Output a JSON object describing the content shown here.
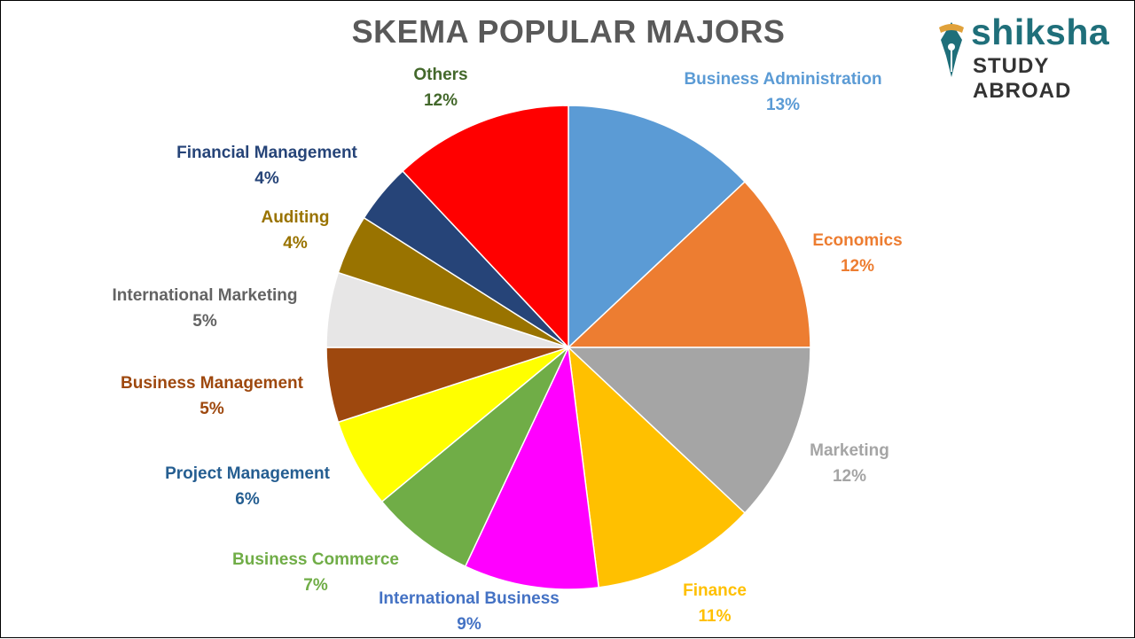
{
  "logo": {
    "word": "shiksha",
    "sub": "STUDY ABROAD",
    "color": "#1f6f7a"
  },
  "chart_data": {
    "type": "pie",
    "title": "SKEMA POPULAR MAJORS",
    "start_angle_deg": 0,
    "direction": "clockwise",
    "slices": [
      {
        "label": "Business Administration",
        "value_text": "13%",
        "value": 13,
        "color": "#5b9bd5",
        "label_color": "#5b9bd5"
      },
      {
        "label": "Economics",
        "value_text": "12%",
        "value": 12,
        "color": "#ed7d31",
        "label_color": "#ed7d31"
      },
      {
        "label": "Marketing",
        "value_text": "12%",
        "value": 12,
        "color": "#a5a5a5",
        "label_color": "#a5a5a5"
      },
      {
        "label": "Finance",
        "value_text": "11%",
        "value": 11,
        "color": "#ffc000",
        "label_color": "#ffc000"
      },
      {
        "label": "International Business",
        "value_text": "9%",
        "value": 9,
        "color": "#ff00ff",
        "label_color": "#4472c4"
      },
      {
        "label": "Business Commerce",
        "value_text": "7%",
        "value": 7,
        "color": "#70ad47",
        "label_color": "#70ad47"
      },
      {
        "label": "Project Management",
        "value_text": "6%",
        "value": 6,
        "color": "#ffff00",
        "label_color": "#255e91"
      },
      {
        "label": "Business Management",
        "value_text": "5%",
        "value": 5,
        "color": "#9e480e",
        "label_color": "#9e480e"
      },
      {
        "label": "International Marketing",
        "value_text": "5%",
        "value": 5,
        "color": "#e7e6e6",
        "label_color": "#636363"
      },
      {
        "label": "Auditing",
        "value_text": "4%",
        "value": 4,
        "color": "#997300",
        "label_color": "#997300"
      },
      {
        "label": "Financial Management",
        "value_text": "4%",
        "value": 4,
        "color": "#264478",
        "label_color": "#264478"
      },
      {
        "label": "Others",
        "value_text": "12%",
        "value": 12,
        "color": "#ff0000",
        "label_color": "#43682b"
      }
    ]
  }
}
